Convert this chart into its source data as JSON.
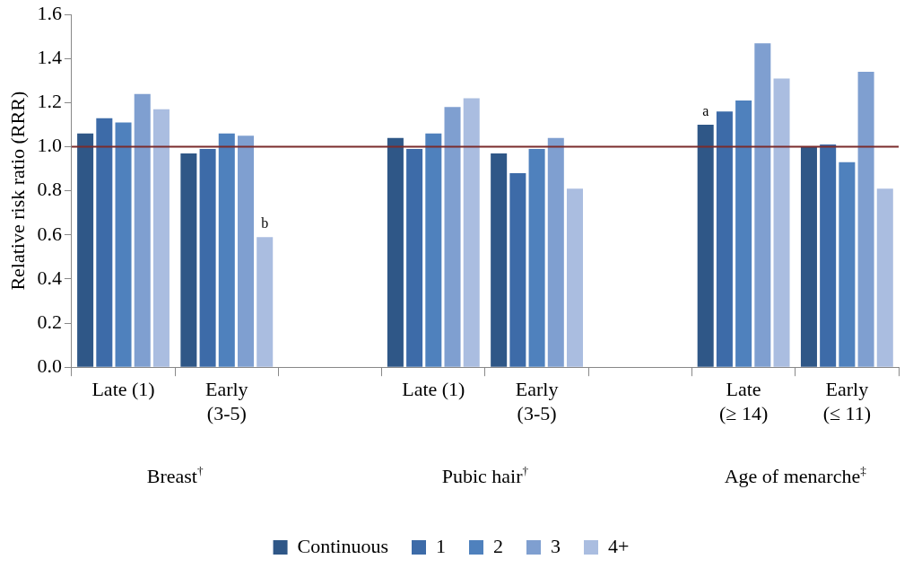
{
  "chart_data": {
    "type": "bar",
    "ylabel": "Relative risk ratio (RRR)",
    "categories": [
      "Late (1)",
      "Early (3-5)",
      null,
      "Late (1)",
      "Early (3-5)",
      null,
      "Late (≥ 14)",
      "Early (≤ 11)"
    ],
    "series": [
      {
        "name": "Continuous",
        "color": "#2f5787",
        "values": [
          1.06,
          0.97,
          null,
          1.04,
          0.97,
          null,
          1.1,
          1.0
        ]
      },
      {
        "name": "1",
        "color": "#3d6ba8",
        "values": [
          1.13,
          0.99,
          null,
          0.99,
          0.88,
          null,
          1.16,
          1.01
        ]
      },
      {
        "name": "2",
        "color": "#4f81bd",
        "values": [
          1.11,
          1.06,
          null,
          1.06,
          0.99,
          null,
          1.21,
          0.93
        ]
      },
      {
        "name": "3",
        "color": "#7f9fd0",
        "values": [
          1.24,
          1.05,
          null,
          1.18,
          1.04,
          null,
          1.47,
          1.34
        ]
      },
      {
        "name": "4+",
        "color": "#aabde0",
        "values": [
          1.17,
          0.59,
          null,
          1.22,
          0.81,
          null,
          1.31,
          0.81
        ]
      }
    ],
    "ylim": [
      0,
      1.6
    ],
    "yticks": [
      {
        "value": 0,
        "label": "0.0"
      },
      {
        "value": 0.2,
        "label": "0.2"
      },
      {
        "value": 0.4,
        "label": "0.4"
      },
      {
        "value": 0.6,
        "label": "0.6"
      },
      {
        "value": 0.8,
        "label": "0.8"
      },
      {
        "value": 1,
        "label": "1.0"
      },
      {
        "value": 1.2,
        "label": "1.2"
      },
      {
        "value": 1.4,
        "label": "1.4"
      },
      {
        "value": 1.6,
        "label": "1.6"
      }
    ],
    "ref_lines": [
      {
        "axis": "y",
        "value": 1.0,
        "color": "#7b2c2c"
      }
    ],
    "annotations": [
      "a",
      "b",
      "Breast$^{†}$",
      "Pubic hair$^{†}$",
      "Age of menarche$^{‡}$"
    ],
    "grid": false,
    "legend": "bottom"
  }
}
